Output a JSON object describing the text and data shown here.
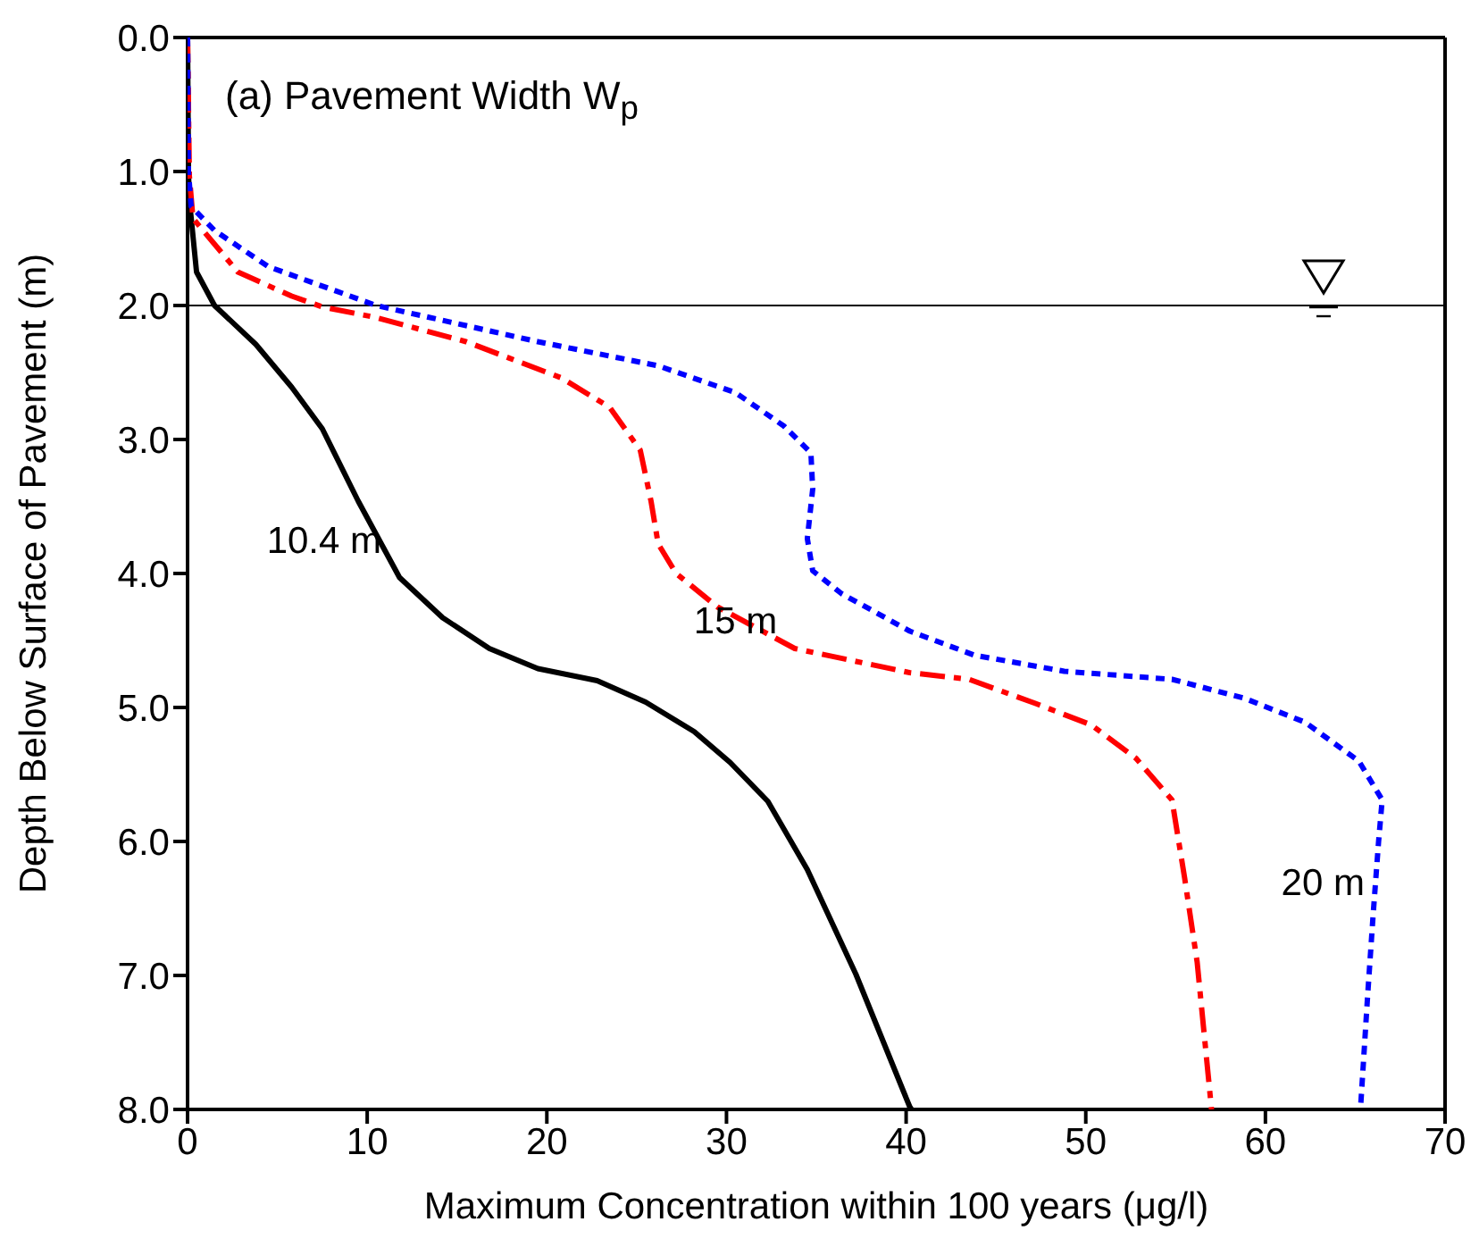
{
  "chart_data": {
    "type": "line",
    "title": "(a)  Pavement Width W$_{p}$",
    "xlabel": "Maximum Concentration within 100 years (μg/l)",
    "ylabel": "Depth Below Surface of Pavement (m)",
    "xlim": [
      0,
      70
    ],
    "xticks": [
      0,
      10,
      20,
      30,
      40,
      50,
      60,
      70
    ],
    "ylim": [
      8,
      0
    ],
    "yticks": [
      {
        "value": 0,
        "label": "0.0"
      },
      {
        "value": 1,
        "label": "1.0"
      },
      {
        "value": 2,
        "label": "2.0"
      },
      {
        "value": 3,
        "label": "3.0"
      },
      {
        "value": 4,
        "label": "4.0"
      },
      {
        "value": 5,
        "label": "5.0"
      },
      {
        "value": 6,
        "label": "6.0"
      },
      {
        "value": 7,
        "label": "7.0"
      },
      {
        "value": 8,
        "label": "8.0"
      }
    ],
    "marker": "none",
    "ref_lines": [
      {
        "axis": "y",
        "value": 2.0,
        "color": "#000000"
      }
    ],
    "series": [
      {
        "name": "10.4 m",
        "color": "#000000",
        "line_style": "solid",
        "x": [
          0,
          0.05,
          0.1,
          0.5,
          1.5,
          3.8,
          5.8,
          7.5,
          9.5,
          11.8,
          14.2,
          16.8,
          19.5,
          22.8,
          25.5,
          28.2,
          30.2,
          32.3,
          34.5,
          37.2,
          40.2,
          40.3
        ],
        "values": [
          0,
          1.0,
          1.21,
          1.75,
          2.0,
          2.29,
          2.61,
          2.92,
          3.46,
          4.03,
          4.33,
          4.56,
          4.71,
          4.8,
          4.96,
          5.18,
          5.41,
          5.7,
          6.21,
          6.99,
          7.98,
          8.0
        ]
      },
      {
        "name": "15 m",
        "color": "#ff0000",
        "line_style": "dashed",
        "x": [
          0,
          0.1,
          0.3,
          2.8,
          5.8,
          7.5,
          10.5,
          15.5,
          20.8,
          23.5,
          25.2,
          25.8,
          26.2,
          27.2,
          29.5,
          33.8,
          40.2,
          43.5,
          47.2,
          50.3,
          52.8,
          54.8,
          55.5,
          56.2,
          57.0
        ],
        "values": [
          0,
          1.03,
          1.35,
          1.75,
          1.93,
          2.01,
          2.09,
          2.27,
          2.54,
          2.76,
          3.08,
          3.46,
          3.78,
          4.0,
          4.25,
          4.56,
          4.74,
          4.79,
          4.97,
          5.13,
          5.38,
          5.69,
          6.27,
          6.9,
          8.0
        ]
      },
      {
        "name": "20 m",
        "color": "#0000ff",
        "line_style": "dotted",
        "x": [
          0,
          0.05,
          0.2,
          1.5,
          4.5,
          10.5,
          19.5,
          26.2,
          30.5,
          33.2,
          34.7,
          34.8,
          34.5,
          34.8,
          36.4,
          40.2,
          43.8,
          48.8,
          54.8,
          58.8,
          62.2,
          65.2,
          66.5,
          66.3,
          66.0,
          65.7,
          65.3
        ],
        "values": [
          0,
          1.0,
          1.26,
          1.44,
          1.71,
          2.0,
          2.27,
          2.45,
          2.65,
          2.9,
          3.1,
          3.37,
          3.74,
          3.98,
          4.15,
          4.43,
          4.61,
          4.73,
          4.79,
          4.93,
          5.11,
          5.4,
          5.69,
          6.0,
          6.54,
          7.13,
          7.98
        ]
      }
    ]
  }
}
